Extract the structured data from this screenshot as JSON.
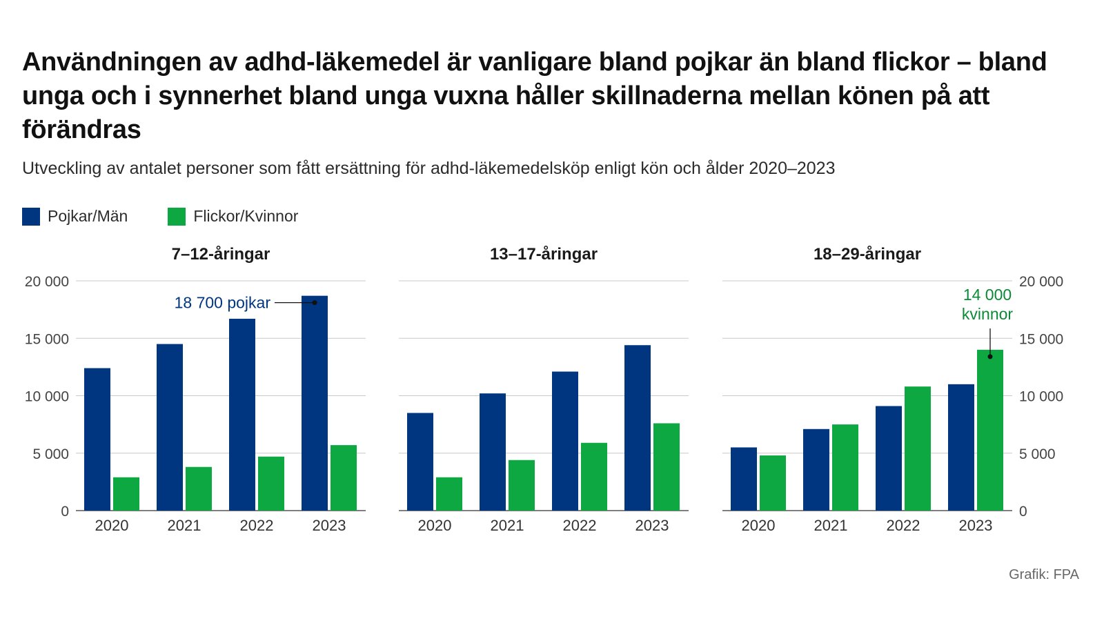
{
  "title": "Användningen av adhd-läkemedel är vanligare bland pojkar än bland flickor – bland unga och i synnerhet bland unga vuxna håller skillnaderna mellan könen på att förändras",
  "subtitle": "Utveckling av antalet personer som fått ersättning för adhd-läkemedelsköp enligt kön och ålder 2020–2023",
  "source": "Grafik: FPA",
  "colors": {
    "boys": "#003580",
    "girls": "#0ea843",
    "grid": "#c8c8c8",
    "axis": "#555555"
  },
  "legend": [
    {
      "label": "Pojkar/Män",
      "color": "#003580"
    },
    {
      "label": "Flickor/Kvinnor",
      "color": "#0ea843"
    }
  ],
  "chart_data": [
    {
      "type": "bar",
      "title": "7–12-åringar",
      "categories": [
        "2020",
        "2021",
        "2022",
        "2023"
      ],
      "series": [
        {
          "name": "Pojkar/Män",
          "values": [
            12400,
            14500,
            16700,
            18700
          ]
        },
        {
          "name": "Flickor/Kvinnor",
          "values": [
            2900,
            3800,
            4700,
            5700
          ]
        }
      ],
      "ylim": [
        0,
        20000
      ],
      "yticks": [
        "0",
        "5 000",
        "10 000",
        "15 000",
        "20 000"
      ],
      "y_axis_side": "left",
      "grid": true,
      "annotation": {
        "text": [
          "18 700 pojkar"
        ],
        "series": 0,
        "index": 3,
        "color": "#003580"
      }
    },
    {
      "type": "bar",
      "title": "13–17-åringar",
      "categories": [
        "2020",
        "2021",
        "2022",
        "2023"
      ],
      "series": [
        {
          "name": "Pojkar/Män",
          "values": [
            8500,
            10200,
            12100,
            14400
          ]
        },
        {
          "name": "Flickor/Kvinnor",
          "values": [
            2900,
            4400,
            5900,
            7600
          ]
        }
      ],
      "ylim": [
        0,
        20000
      ],
      "grid": true
    },
    {
      "type": "bar",
      "title": "18–29-åringar",
      "categories": [
        "2020",
        "2021",
        "2022",
        "2023"
      ],
      "series": [
        {
          "name": "Pojkar/Män",
          "values": [
            5500,
            7100,
            9100,
            11000
          ]
        },
        {
          "name": "Flickor/Kvinnor",
          "values": [
            4800,
            7500,
            10800,
            14000
          ]
        }
      ],
      "ylim": [
        0,
        20000
      ],
      "yticks": [
        "0",
        "5 000",
        "10 000",
        "15 000",
        "20 000"
      ],
      "y_axis_side": "right",
      "grid": true,
      "annotation": {
        "text": [
          "14 000",
          "kvinnor"
        ],
        "series": 1,
        "index": 3,
        "color": "#0a8a36"
      }
    }
  ]
}
